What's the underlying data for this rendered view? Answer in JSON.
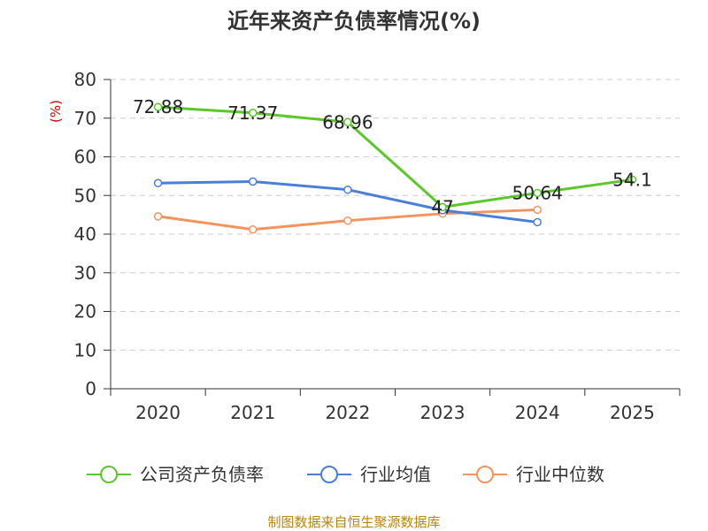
{
  "title": "近年来资产负债率情况(%)",
  "source": "制图数据来自恒生聚源数据库",
  "colors": {
    "company": "#5cc72a",
    "industry_avg": "#4a7fd8",
    "industry_median": "#f4935e",
    "grid": "#cccccc",
    "axis": "#333333",
    "unit": "#cc0000"
  },
  "chart_data": {
    "type": "line",
    "title": "近年来资产负债率情况(%)",
    "ylabel": "(%)",
    "xlabel": "",
    "categories": [
      "2020",
      "2021",
      "2022",
      "2023",
      "2024",
      "2025"
    ],
    "ylim": [
      0,
      80
    ],
    "yticks": [
      0,
      10,
      20,
      30,
      40,
      50,
      60,
      70,
      80
    ],
    "grid": true,
    "legend_position": "bottom",
    "series": [
      {
        "name": "公司资产负债率",
        "color_key": "company",
        "values": [
          72.88,
          71.37,
          68.96,
          47,
          50.64,
          54.1
        ],
        "labels": [
          "72.88",
          "71.37",
          "68.96",
          "47",
          "50.64",
          "54.1"
        ]
      },
      {
        "name": "行业均值",
        "color_key": "industry_avg",
        "values": [
          53.2,
          53.6,
          51.5,
          46.2,
          43.1,
          null
        ]
      },
      {
        "name": "行业中位数",
        "color_key": "industry_median",
        "values": [
          44.6,
          41.2,
          43.5,
          45.3,
          46.3,
          null
        ]
      }
    ]
  }
}
